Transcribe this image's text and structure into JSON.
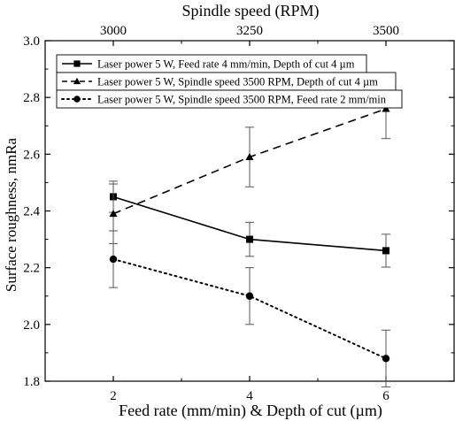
{
  "chart_data": {
    "type": "line",
    "title": "",
    "top_axis": {
      "label": "Spindle speed (RPM)",
      "ticks": [
        "3000",
        "3250",
        "3500"
      ]
    },
    "xlabel": "Feed rate (mm/min) & Depth of cut (µm)",
    "ylabel": "Surface roughness, nmRa",
    "x_ticks": [
      "2",
      "4",
      "6"
    ],
    "xlim": [
      1,
      7
    ],
    "ylim": [
      1.8,
      3.0
    ],
    "y_ticks": [
      "1.8",
      "2.0",
      "2.2",
      "2.4",
      "2.6",
      "2.8",
      "3.0"
    ],
    "legend_position": "top-left",
    "series": [
      {
        "name": "Laser power 5 W, Feed rate 4 mm/min, Depth of cut 4 µm",
        "marker": "square",
        "line": "solid",
        "x": [
          2,
          4,
          6
        ],
        "y": [
          2.45,
          2.3,
          2.26
        ],
        "err": [
          0.055,
          0.06,
          0.058
        ]
      },
      {
        "name": "Laser power 5 W, Spindle speed 3500 RPM, Depth of cut 4  µm",
        "marker": "triangle",
        "line": "dashed",
        "x": [
          2,
          4,
          6
        ],
        "y": [
          2.39,
          2.59,
          2.76
        ],
        "err": [
          0.105,
          0.105,
          0.105
        ]
      },
      {
        "name": "Laser power 5 W, Spindle speed 3500 RPM, Feed rate 2 mm/min",
        "marker": "circle",
        "line": "dotted",
        "x": [
          2,
          4,
          6
        ],
        "y": [
          2.23,
          2.1,
          1.88
        ],
        "err": [
          0.1,
          0.1,
          0.1
        ]
      }
    ],
    "colors": {
      "line": "#000000",
      "background": "#ffffff"
    }
  }
}
